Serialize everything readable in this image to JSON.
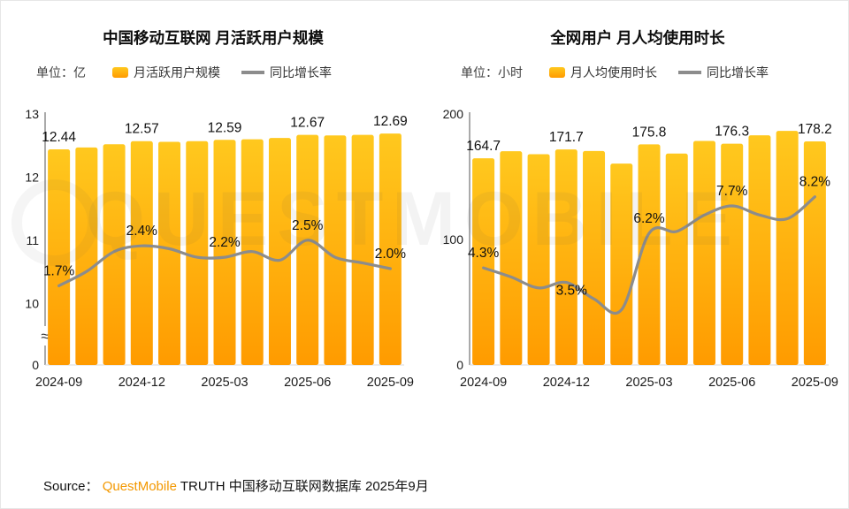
{
  "page": {
    "watermark": "QUESTMOBILE",
    "source": {
      "prefix": "Source：",
      "brand": "QuestMobile",
      "suffix": " TRUTH 中国移动互联网数据库 2025年9月"
    }
  },
  "colors": {
    "bar_top": "#FFC81E",
    "bar_bottom": "#FF9B00",
    "line": "#8C8C8C",
    "brand_orange": "#F39800"
  },
  "chart_data": [
    {
      "type": "bar",
      "title": "中国移动互联网 月活跃用户规模",
      "unit": "单位：亿",
      "legend": [
        {
          "label": "月活跃用户规模",
          "swatch": "bar"
        },
        {
          "label": "同比增长率",
          "swatch": "line"
        }
      ],
      "categories": [
        "2024-09",
        "2024-10",
        "2024-11",
        "2024-12",
        "2025-01",
        "2025-02",
        "2025-03",
        "2025-04",
        "2025-05",
        "2025-06",
        "2025-07",
        "2025-08",
        "2025-09"
      ],
      "bar_series": {
        "name": "月活跃用户规模",
        "values": [
          12.44,
          12.47,
          12.52,
          12.57,
          12.56,
          12.57,
          12.59,
          12.6,
          12.62,
          12.67,
          12.66,
          12.67,
          12.69
        ]
      },
      "line_series": {
        "name": "同比增长率",
        "unit": "%",
        "values": [
          1.7,
          1.95,
          2.3,
          2.4,
          2.35,
          2.2,
          2.2,
          2.3,
          2.15,
          2.5,
          2.2,
          2.1,
          2.0
        ]
      },
      "labeled_indices": [
        0,
        3,
        6,
        9,
        12
      ],
      "bar_labels": [
        "12.44",
        "12.57",
        "12.59",
        "12.67",
        "12.69"
      ],
      "line_labels": [
        "1.7%",
        "2.4%",
        "2.2%",
        "2.5%",
        "2.0%"
      ],
      "x_tick_labels": [
        "2024-09",
        "2024-12",
        "2025-03",
        "2025-06",
        "2025-09"
      ],
      "y_axis": {
        "ticks": [
          {
            "label": "13",
            "v": 13
          },
          {
            "label": "12",
            "v": 12
          },
          {
            "label": "11",
            "v": 11
          },
          {
            "label": "10",
            "v": 10
          },
          {
            "label": "0",
            "v": 0
          }
        ],
        "break": true
      },
      "layout": {
        "value_map": [
          [
            0,
            0
          ],
          [
            10,
            0.245
          ],
          [
            13,
            1
          ]
        ],
        "line_map": [
          [
            1.5,
            0.27
          ],
          [
            2.6,
            0.52
          ]
        ],
        "line_label_offsets": {}
      }
    },
    {
      "type": "bar",
      "title": "全网用户 月人均使用时长",
      "unit": "单位：小时",
      "legend": [
        {
          "label": "月人均使用时长",
          "swatch": "bar"
        },
        {
          "label": "同比增长率",
          "swatch": "line"
        }
      ],
      "categories": [
        "2024-09",
        "2024-10",
        "2024-11",
        "2024-12",
        "2025-01",
        "2025-02",
        "2025-03",
        "2025-04",
        "2025-05",
        "2025-06",
        "2025-07",
        "2025-08",
        "2025-09"
      ],
      "bar_series": {
        "name": "月人均使用时长",
        "values": [
          164.7,
          170.3,
          168.0,
          171.7,
          170.5,
          160.5,
          175.8,
          168.5,
          178.5,
          176.3,
          183.0,
          186.5,
          178.2
        ]
      },
      "line_series": {
        "name": "同比增长率",
        "unit": "%",
        "values": [
          4.3,
          3.8,
          3.2,
          3.5,
          2.6,
          2.0,
          6.2,
          6.3,
          7.2,
          7.7,
          7.2,
          7.0,
          8.2
        ]
      },
      "labeled_indices": [
        0,
        3,
        6,
        9,
        12
      ],
      "bar_labels": [
        "164.7",
        "171.7",
        "175.8",
        "176.3",
        "178.2"
      ],
      "line_labels": [
        "4.3%",
        "3.5%",
        "6.2%",
        "7.7%",
        "8.2%"
      ],
      "x_tick_labels": [
        "2024-09",
        "2024-12",
        "2025-03",
        "2025-06",
        "2025-09"
      ],
      "y_axis": {
        "ticks": [
          {
            "label": "200",
            "v": 200
          },
          {
            "label": "100",
            "v": 100
          },
          {
            "label": "0",
            "v": 0
          }
        ],
        "break": false
      },
      "layout": {
        "value_map": [
          [
            0,
            0
          ],
          [
            200,
            1
          ]
        ],
        "line_map": [
          [
            2.0,
            0.22
          ],
          [
            8.2,
            0.67
          ]
        ],
        "line_label_offsets": {
          "3": [
            6,
            26
          ]
        }
      }
    }
  ]
}
